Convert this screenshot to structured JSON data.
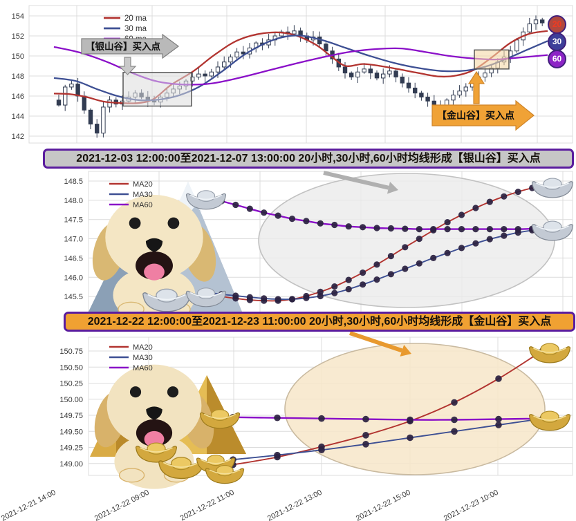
{
  "colors": {
    "ma20": "#b23430",
    "ma30": "#3d4f93",
    "ma60": "#8a0fc8",
    "candle": "#323c52",
    "grid": "#dcdcdc",
    "marker": "#2a2140",
    "silver_banner_bg": "#b9b9b9",
    "gold_banner_bg": "#f0a236",
    "silver_title_bg": "#c6c6c6",
    "gold_title_bg": "#f0a132",
    "purple_border": "#5a1c9e",
    "silver_ellipse": "#ebebeb",
    "gold_ellipse": "#f7e6c9",
    "badge20_bg": "#b0483e",
    "badge20_text": "#ef3b22",
    "badge30_bg": "#3d3f99",
    "badge60_bg": "#8d24c6"
  },
  "icons": {
    "silver_ingot": "silver-ingot-icon",
    "gold_ingot": "gold-ingot-icon",
    "dog": "golden-retriever-illustration",
    "mountain": "silver-mountain-icon",
    "pyramid": "gold-pyramid-icon",
    "down_arrow": "down-arrow-icon",
    "up_arrow": "up-arrow-icon",
    "callout_arrow": "annotation-arrow-icon"
  },
  "chart_data": [
    {
      "type": "candlestick",
      "title": "",
      "legend": [
        "20 ma",
        "30 ma",
        "60 ma"
      ],
      "ylabel": "",
      "ylim": [
        141.3,
        155.0
      ],
      "yticks": [
        "142",
        "144",
        "146",
        "148",
        "150",
        "152",
        "154"
      ],
      "grid": true,
      "closes": [
        145.1,
        146.9,
        147.2,
        146.0,
        144.6,
        143.2,
        142.3,
        144.9,
        145.6,
        145.2,
        145.5,
        145.9,
        146.3,
        145.9,
        145.5,
        145.4,
        145.9,
        146.3,
        146.7,
        147.0,
        147.5,
        147.9,
        148.2,
        148.0,
        148.4,
        148.9,
        149.4,
        149.9,
        150.4,
        150.2,
        150.8,
        151.3,
        151.1,
        151.6,
        152.0,
        152.4,
        152.2,
        152.5,
        152.0,
        151.6,
        151.9,
        151.2,
        150.5,
        149.7,
        148.9,
        148.3,
        147.9,
        148.4,
        148.7,
        148.3,
        147.8,
        148.2,
        148.5,
        147.9,
        147.3,
        146.8,
        146.3,
        145.9,
        145.5,
        145.1,
        145.0,
        145.6,
        146.1,
        146.5,
        146.9,
        147.4,
        147.9,
        148.3,
        148.8,
        149.4,
        149.9,
        150.5,
        151.6,
        152.4,
        153.2,
        153.6,
        153.3
      ],
      "ma20": [
        [
          78,
          146.25
        ],
        [
          100,
          146.2
        ],
        [
          125,
          145.9
        ],
        [
          150,
          145.45
        ],
        [
          175,
          145.3
        ],
        [
          200,
          145.3
        ],
        [
          222,
          145.7
        ],
        [
          247,
          147.1
        ],
        [
          280,
          148.5
        ],
        [
          310,
          150.1
        ],
        [
          345,
          151.6
        ],
        [
          385,
          152.3
        ],
        [
          420,
          152.2
        ],
        [
          455,
          151.2
        ],
        [
          480,
          149.9
        ],
        [
          500,
          149.0
        ],
        [
          525,
          149.2
        ],
        [
          550,
          149.0
        ],
        [
          575,
          148.7
        ],
        [
          605,
          148.3
        ],
        [
          635,
          147.95
        ],
        [
          660,
          148.05
        ],
        [
          685,
          148.6
        ],
        [
          712,
          149.9
        ],
        [
          738,
          151.3
        ],
        [
          765,
          152.2
        ],
        [
          792,
          152.5
        ]
      ],
      "ma30": [
        [
          78,
          147.8
        ],
        [
          110,
          147.5
        ],
        [
          140,
          146.7
        ],
        [
          170,
          146.0
        ],
        [
          200,
          145.6
        ],
        [
          230,
          145.65
        ],
        [
          260,
          146.1
        ],
        [
          290,
          147.0
        ],
        [
          320,
          148.4
        ],
        [
          355,
          150.2
        ],
        [
          395,
          151.6
        ],
        [
          430,
          152.05
        ],
        [
          465,
          151.6
        ],
        [
          500,
          150.8
        ],
        [
          535,
          150.0
        ],
        [
          570,
          149.3
        ],
        [
          605,
          148.8
        ],
        [
          640,
          148.5
        ],
        [
          675,
          148.55
        ],
        [
          705,
          149.0
        ],
        [
          735,
          149.8
        ],
        [
          765,
          150.7
        ],
        [
          792,
          151.5
        ]
      ],
      "ma60": [
        [
          78,
          150.9
        ],
        [
          115,
          150.35
        ],
        [
          155,
          149.4
        ],
        [
          195,
          148.2
        ],
        [
          228,
          147.45
        ],
        [
          265,
          147.15
        ],
        [
          305,
          147.25
        ],
        [
          345,
          147.8
        ],
        [
          385,
          148.5
        ],
        [
          425,
          149.2
        ],
        [
          465,
          149.85
        ],
        [
          505,
          150.4
        ],
        [
          545,
          150.7
        ],
        [
          580,
          150.75
        ],
        [
          615,
          150.4
        ],
        [
          650,
          150.0
        ],
        [
          685,
          149.75
        ],
        [
          715,
          149.65
        ],
        [
          745,
          149.8
        ],
        [
          792,
          150.1
        ]
      ],
      "annotations": {
        "silver_label": "【银山谷】买入点",
        "gold_label": "【金山谷】买入点",
        "silver_rect": {
          "x": 178,
          "x2": 277,
          "v": 145.0,
          "v2": 148.35
        },
        "gold_rect": {
          "x": 686,
          "x2": 736,
          "v": 148.7,
          "v2": 150.6
        }
      },
      "badges": [
        "20",
        "30",
        "60"
      ]
    },
    {
      "type": "line",
      "title": "2021-12-03 12:00:00至2021-12-07 13:00:00 20小时,30小时,60小时均线形成【银山谷】买入点",
      "legend": [
        "MA20",
        "MA30",
        "MA60"
      ],
      "ylim": [
        145.1,
        148.7
      ],
      "yticks": [
        "145.5",
        "146.0",
        "146.5",
        "147.0",
        "147.5",
        "148.0",
        "148.5"
      ],
      "grid": true,
      "series": [
        {
          "name": "MA20",
          "values": [
            145.56,
            145.5,
            145.45,
            145.41,
            145.39,
            145.39,
            145.43,
            145.51,
            145.62,
            145.76,
            145.93,
            146.12,
            146.33,
            146.55,
            146.78,
            147.0,
            147.22,
            147.43,
            147.62,
            147.8,
            147.96,
            148.1,
            148.22,
            148.32,
            148.4
          ]
        },
        {
          "name": "MA30",
          "values": [
            145.6,
            145.56,
            145.52,
            145.48,
            145.45,
            145.43,
            145.43,
            145.46,
            145.51,
            145.59,
            145.69,
            145.81,
            145.94,
            146.08,
            146.22,
            146.36,
            146.5,
            146.63,
            146.76,
            146.88,
            146.99,
            147.08,
            147.16,
            147.22,
            147.27
          ]
        },
        {
          "name": "MA60",
          "values": [
            148.08,
            147.98,
            147.88,
            147.78,
            147.68,
            147.6,
            147.52,
            147.46,
            147.4,
            147.36,
            147.32,
            147.3,
            147.28,
            147.27,
            147.26,
            147.25,
            147.25,
            147.25,
            147.25,
            147.25,
            147.25,
            147.25,
            147.25,
            147.26,
            147.27
          ]
        }
      ]
    },
    {
      "type": "line",
      "title": "2021-12-22 12:00:00至2021-12-23 11:00:00 20小时,30小时,60小时均线形成【金山谷】买入点",
      "legend": [
        "MA20",
        "MA30",
        "MA60"
      ],
      "ylim": [
        148.8,
        150.95
      ],
      "yticks": [
        "149.00",
        "149.25",
        "149.50",
        "149.75",
        "150.00",
        "150.25",
        "150.50",
        "150.75"
      ],
      "xticks": [
        "2021-12-21 14:00",
        "2021-12-22 09:00",
        "2021-12-22 11:00",
        "2021-12-22 13:00",
        "2021-12-22 15:00",
        "2021-12-23 10:00"
      ],
      "grid": true,
      "series": [
        {
          "name": "MA20",
          "values": [
            148.98,
            149.1,
            149.26,
            149.44,
            149.66,
            149.95,
            150.32,
            150.76
          ]
        },
        {
          "name": "MA30",
          "values": [
            149.06,
            149.13,
            149.21,
            149.3,
            149.4,
            149.5,
            149.6,
            149.7
          ]
        },
        {
          "name": "MA60",
          "values": [
            149.72,
            149.71,
            149.7,
            149.69,
            149.68,
            149.68,
            149.69,
            149.7
          ]
        }
      ]
    }
  ]
}
